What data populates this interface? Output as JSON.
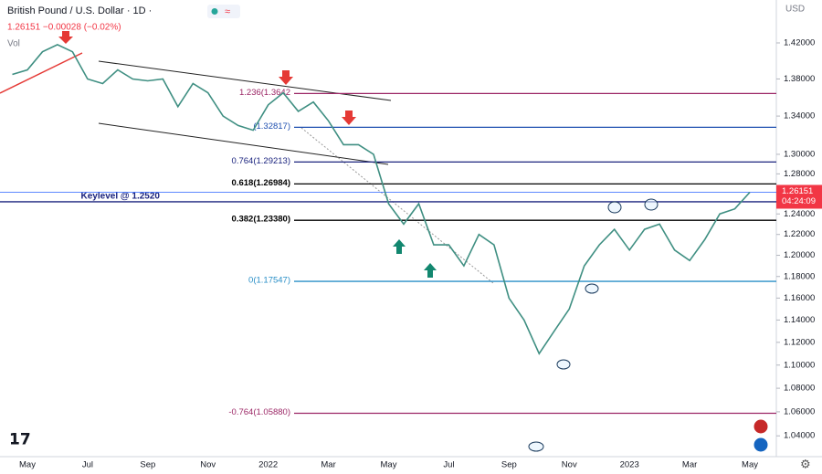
{
  "chart_data": {
    "type": "line",
    "title": "British Pound / U.S. Dollar · 1D ·",
    "quote": "1.26151 −0.00028 (−0.02%)",
    "volume_label": "Vol",
    "currency": "USD",
    "log_scale": true,
    "ylim": [
      1.023,
      1.467
    ],
    "yticks": [
      {
        "value": 1.42,
        "label": "1.42000"
      },
      {
        "value": 1.38,
        "label": "1.38000"
      },
      {
        "value": 1.34,
        "label": "1.34000"
      },
      {
        "value": 1.3,
        "label": "1.30000"
      },
      {
        "value": 1.28,
        "label": "1.28000"
      },
      {
        "value": 1.24,
        "label": "1.24000"
      },
      {
        "value": 1.22,
        "label": "1.22000"
      },
      {
        "value": 1.2,
        "label": "1.20000"
      },
      {
        "value": 1.18,
        "label": "1.18000"
      },
      {
        "value": 1.16,
        "label": "1.16000"
      },
      {
        "value": 1.14,
        "label": "1.14000"
      },
      {
        "value": 1.12,
        "label": "1.12000"
      },
      {
        "value": 1.1,
        "label": "1.10000"
      },
      {
        "value": 1.08,
        "label": "1.08000"
      },
      {
        "value": 1.06,
        "label": "1.06000"
      },
      {
        "value": 1.04,
        "label": "1.04000"
      }
    ],
    "categories": [
      null,
      "May",
      null,
      null,
      null,
      "Jul",
      null,
      null,
      null,
      "Sep",
      null,
      null,
      null,
      "Nov",
      null,
      null,
      null,
      "2022",
      null,
      null,
      null,
      "Mar",
      null,
      null,
      null,
      "May",
      null,
      null,
      null,
      "Jul",
      null,
      null,
      null,
      "Sep",
      null,
      null,
      null,
      "Nov",
      null,
      null,
      null,
      "2023",
      null,
      null,
      null,
      "Mar",
      null,
      null,
      null,
      "May"
    ],
    "series": [
      {
        "name": "GBPUSD",
        "color": "#3f8f82",
        "values": [
          1.385,
          1.39,
          1.41,
          1.418,
          1.41,
          1.38,
          1.375,
          1.39,
          1.38,
          1.378,
          1.38,
          1.35,
          1.375,
          1.365,
          1.34,
          1.33,
          1.325,
          1.352,
          1.365,
          1.345,
          1.355,
          1.335,
          1.31,
          1.31,
          1.3,
          1.25,
          1.23,
          1.25,
          1.21,
          1.21,
          1.19,
          1.22,
          1.21,
          1.16,
          1.14,
          1.11,
          1.13,
          1.15,
          1.19,
          1.21,
          1.225,
          1.205,
          1.225,
          1.23,
          1.205,
          1.195,
          1.215,
          1.24,
          1.245,
          1.26151
        ]
      }
    ],
    "last_price": {
      "value": 1.26151,
      "label": "1.26151",
      "countdown": "04:24:09",
      "color": "#2962ff"
    },
    "levels": [
      {
        "label": "1.236(1.3642",
        "value": 1.3642,
        "color": "#9c2766"
      },
      {
        "label": "(1.32817)",
        "value": 1.32817,
        "color": "#1e4fb0"
      },
      {
        "label": "0.764(1.29213)",
        "value": 1.29213,
        "color": "#1a237e"
      },
      {
        "label": "0.618(1.26984)",
        "value": 1.26984,
        "color": "#000000"
      },
      {
        "label": "0.382(1.23380)",
        "value": 1.2338,
        "color": "#000000"
      },
      {
        "label": "0(1.17547)",
        "value": 1.17547,
        "color": "#2a8fc7"
      },
      {
        "label": "-0.764(1.05880)",
        "value": 1.0588,
        "color": "#9c2766"
      }
    ],
    "keylevel": {
      "label": "Keylevel @ 1.2520",
      "value": 1.252,
      "color": "#1a237e"
    }
  }
}
